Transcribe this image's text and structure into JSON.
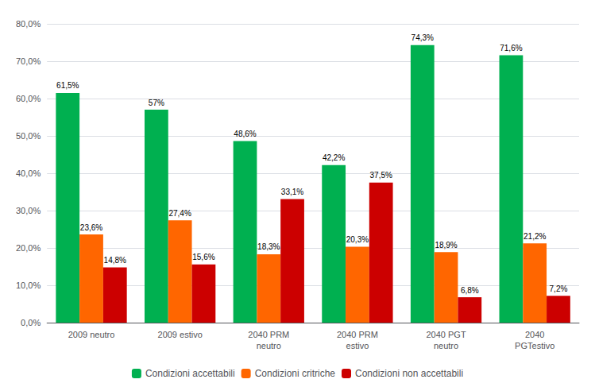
{
  "chart_data": {
    "type": "bar",
    "categories": [
      "2009 neutro",
      "2009 estivo",
      "2040 PRM\nneutro",
      "2040 PRM\nestivo",
      "2040 PGT\nneutro",
      "2040\nPGTestivo"
    ],
    "series": [
      {
        "name": "Condizioni accettabili",
        "color": "#00B050",
        "values": [
          61.5,
          57.0,
          48.6,
          42.2,
          74.3,
          71.6
        ],
        "value_labels": [
          "61,5%",
          "57%",
          "48,6%",
          "42,2%",
          "74,3%",
          "71,6%"
        ]
      },
      {
        "name": "Condizioni critriche",
        "color": "#FF6600",
        "values": [
          23.6,
          27.4,
          18.3,
          20.3,
          18.9,
          21.2
        ],
        "value_labels": [
          "23,6%",
          "27,4%",
          "18,3%",
          "20,3%",
          "18,9%",
          "21,2%"
        ]
      },
      {
        "name": "Condizioni non accettabili",
        "color": "#CC0000",
        "values": [
          14.8,
          15.6,
          33.1,
          37.5,
          6.8,
          7.2
        ],
        "value_labels": [
          "14,8%",
          "15,6%",
          "33,1%",
          "37,5%",
          "6,8%",
          "7,2%"
        ]
      }
    ],
    "ylim": [
      0,
      80
    ],
    "yticks": [
      {
        "value": 0,
        "label": "0,0%"
      },
      {
        "value": 10,
        "label": "10,0%"
      },
      {
        "value": 20,
        "label": "20,0%"
      },
      {
        "value": 30,
        "label": "30,0%"
      },
      {
        "value": 40,
        "label": "40,0%"
      },
      {
        "value": 50,
        "label": "50,0%"
      },
      {
        "value": 60,
        "label": "60,0%"
      },
      {
        "value": 70,
        "label": "70,0%"
      },
      {
        "value": 80,
        "label": "80,0%"
      }
    ],
    "grid": true,
    "legend": "bottom",
    "data_labels": true
  }
}
